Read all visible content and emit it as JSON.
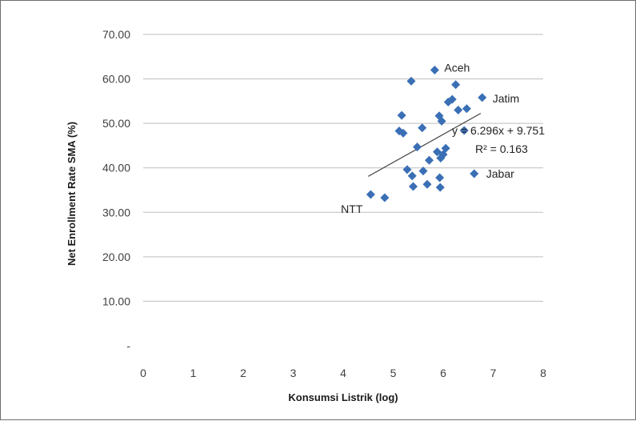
{
  "chart_data": {
    "type": "scatter",
    "title": "",
    "xlabel": "Konsumsi Listrik (log)",
    "ylabel": "Net Enrollment Rate SMA (%)",
    "xlim": [
      0,
      8
    ],
    "ylim": [
      0,
      70
    ],
    "x_ticks": [
      "0",
      "1",
      "2",
      "3",
      "4",
      "5",
      "6",
      "7",
      "8"
    ],
    "y_ticks": [
      "-",
      "10.00",
      "20.00",
      "30.00",
      "40.00",
      "50.00",
      "60.00",
      "70.00"
    ],
    "grid": "horizontal",
    "marker_color": "#3a6fb5",
    "trendline_color": "#404040",
    "series": [
      {
        "points": [
          {
            "x": 4.55,
            "y": 34.0
          },
          {
            "x": 4.83,
            "y": 33.3
          },
          {
            "x": 5.12,
            "y": 48.3
          },
          {
            "x": 5.17,
            "y": 51.8
          },
          {
            "x": 5.2,
            "y": 47.8
          },
          {
            "x": 5.28,
            "y": 39.6
          },
          {
            "x": 5.36,
            "y": 59.5
          },
          {
            "x": 5.38,
            "y": 38.2
          },
          {
            "x": 5.4,
            "y": 35.8
          },
          {
            "x": 5.48,
            "y": 44.7
          },
          {
            "x": 5.58,
            "y": 49.0
          },
          {
            "x": 5.6,
            "y": 39.3
          },
          {
            "x": 5.68,
            "y": 36.3
          },
          {
            "x": 5.72,
            "y": 41.7
          },
          {
            "x": 5.83,
            "y": 62.0
          },
          {
            "x": 5.88,
            "y": 43.6
          },
          {
            "x": 5.92,
            "y": 51.7
          },
          {
            "x": 5.93,
            "y": 37.8
          },
          {
            "x": 5.94,
            "y": 35.6
          },
          {
            "x": 5.95,
            "y": 42.2
          },
          {
            "x": 5.97,
            "y": 50.5
          },
          {
            "x": 6.0,
            "y": 43.0
          },
          {
            "x": 6.05,
            "y": 44.4
          },
          {
            "x": 6.1,
            "y": 54.8
          },
          {
            "x": 6.18,
            "y": 55.4
          },
          {
            "x": 6.25,
            "y": 58.7
          },
          {
            "x": 6.3,
            "y": 53.0
          },
          {
            "x": 6.42,
            "y": 48.4
          },
          {
            "x": 6.47,
            "y": 53.3
          },
          {
            "x": 6.62,
            "y": 38.7
          },
          {
            "x": 6.78,
            "y": 55.8
          }
        ]
      }
    ],
    "trendline": {
      "slope": 6.296,
      "intercept": 9.751,
      "x_start": 4.5,
      "x_end": 6.75
    },
    "annotations": [
      {
        "text": "Aceh",
        "x": 5.83,
        "y": 62.0
      },
      {
        "text": "Jatim",
        "x": 6.78,
        "y": 55.8
      },
      {
        "text": "Jabar",
        "x": 6.62,
        "y": 38.7
      },
      {
        "text": "NTT",
        "x": 4.55,
        "y": 34.0
      }
    ],
    "equation_text": "y = 6.296x + 9.751",
    "r2_text": "R² = 0.163"
  }
}
